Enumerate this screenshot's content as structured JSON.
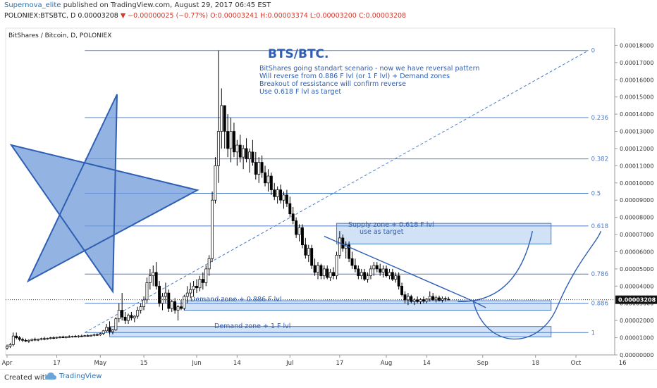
{
  "header": {
    "author": "Supernova_elite",
    "published": "published on TradingView.com, August 29, 2017 06:45 EST",
    "symbol": "POLONIEX:BTSBTC, D",
    "last": "0.00003208",
    "change": "▼ −0.00000025 (−0.77%)",
    "ohlc": "O:0.00003241 H:0.00003374 L:0.00003200 C:0.00003208"
  },
  "footer": {
    "created_with": "Created with",
    "brand": "TradingView"
  },
  "colors": {
    "candle_up": "#ffffff",
    "candle_down": "#000000",
    "fib_line": "#4a7cc9",
    "zone_fill": "#c9dcf4",
    "annotation": "#2e5fb3",
    "star_fill": "#6f9bd9"
  },
  "chart_data": {
    "type": "candlestick",
    "symbol_label": "BitShares / Bitcoin, D, POLONIEX",
    "ylim": [
      0,
      0.00019
    ],
    "y_ticks": [
      "0.00000000",
      "0.00001000",
      "0.00002000",
      "0.00003000",
      "0.00004000",
      "0.00005000",
      "0.00006000",
      "0.00007000",
      "0.00008000",
      "0.00009000",
      "0.00010000",
      "0.00011000",
      "0.00012000",
      "0.00013000",
      "0.00014000",
      "0.00015000",
      "0.00016000",
      "0.00017000",
      "0.00018000"
    ],
    "y_tick_values": [
      0,
      1e-05,
      2e-05,
      3e-05,
      4e-05,
      5e-05,
      6e-05,
      7e-05,
      8e-05,
      9e-05,
      0.0001,
      0.00011,
      0.00012,
      0.00013,
      0.00014,
      0.00015,
      0.00016,
      0.00017,
      0.00018
    ],
    "x_ticks": [
      {
        "label": "Apr",
        "day": 1
      },
      {
        "label": "17",
        "day": 17
      },
      {
        "label": "May",
        "day": 31
      },
      {
        "label": "15",
        "day": 45
      },
      {
        "label": "Jun",
        "day": 62
      },
      {
        "label": "14",
        "day": 75
      },
      {
        "label": "Jul",
        "day": 92
      },
      {
        "label": "17",
        "day": 108
      },
      {
        "label": "Aug",
        "day": 123
      },
      {
        "label": "14",
        "day": 136
      },
      {
        "label": "Sep",
        "day": 154
      },
      {
        "label": "18",
        "day": 171
      },
      {
        "label": "Oct",
        "day": 184
      },
      {
        "label": "16",
        "day": 199
      }
    ],
    "last_price_label": "0.00003208",
    "last_price": 3.208e-05,
    "fib_levels": [
      {
        "label": "0",
        "value": 0.000177
      },
      {
        "label": "0.236",
        "value": 0.000138
      },
      {
        "label": "0.382",
        "value": 0.000114
      },
      {
        "label": "0.5",
        "value": 9.4e-05
      },
      {
        "label": "0.618",
        "value": 7.5e-05
      },
      {
        "label": "0.786",
        "value": 4.7e-05
      },
      {
        "label": "0.886",
        "value": 3e-05
      },
      {
        "label": "1",
        "value": 1.3e-05
      }
    ],
    "candles": [
      {
        "o": 4e-06,
        "h": 6e-06,
        "l": 3e-06,
        "c": 5e-06
      },
      {
        "o": 5e-06,
        "h": 7e-06,
        "l": 4e-06,
        "c": 6e-06
      },
      {
        "o": 6e-06,
        "h": 1.3e-05,
        "l": 5e-06,
        "c": 1.1e-05
      },
      {
        "o": 1.1e-05,
        "h": 1.3e-05,
        "l": 9e-06,
        "c": 1e-05
      },
      {
        "o": 1e-05,
        "h": 1.1e-05,
        "l": 8e-06,
        "c": 9e-06
      },
      {
        "o": 9e-06,
        "h": 1e-05,
        "l": 7.5e-06,
        "c": 8.5e-06
      },
      {
        "o": 8.5e-06,
        "h": 9.5e-06,
        "l": 7.5e-06,
        "c": 8e-06
      },
      {
        "o": 8e-06,
        "h": 9e-06,
        "l": 7e-06,
        "c": 8.5e-06
      },
      {
        "o": 8.5e-06,
        "h": 9.5e-06,
        "l": 7.8e-06,
        "c": 9e-06
      },
      {
        "o": 9e-06,
        "h": 1e-05,
        "l": 8e-06,
        "c": 8.8e-06
      },
      {
        "o": 8.8e-06,
        "h": 9.5e-06,
        "l": 8e-06,
        "c": 9e-06
      },
      {
        "o": 9e-06,
        "h": 1e-05,
        "l": 8.5e-06,
        "c": 9.5e-06
      },
      {
        "o": 9.5e-06,
        "h": 1.05e-05,
        "l": 8.5e-06,
        "c": 9.2e-06
      },
      {
        "o": 9.2e-06,
        "h": 1e-05,
        "l": 8.8e-06,
        "c": 9.6e-06
      },
      {
        "o": 9.6e-06,
        "h": 1.05e-05,
        "l": 9e-06,
        "c": 1e-05
      },
      {
        "o": 1e-05,
        "h": 1.08e-05,
        "l": 9.2e-06,
        "c": 9.8e-06
      },
      {
        "o": 9.8e-06,
        "h": 1.06e-05,
        "l": 9.4e-06,
        "c": 1.02e-05
      },
      {
        "o": 1.02e-05,
        "h": 1.1e-05,
        "l": 9.6e-06,
        "c": 1.05e-05
      },
      {
        "o": 1.05e-05,
        "h": 1.12e-05,
        "l": 9.8e-06,
        "c": 1e-05
      },
      {
        "o": 1e-05,
        "h": 1.1e-05,
        "l": 9.6e-06,
        "c": 1.06e-05
      },
      {
        "o": 1.06e-05,
        "h": 1.14e-05,
        "l": 1e-05,
        "c": 1.04e-05
      },
      {
        "o": 1.04e-05,
        "h": 1.12e-05,
        "l": 1e-05,
        "c": 1.08e-05
      },
      {
        "o": 1.08e-05,
        "h": 1.16e-05,
        "l": 1.02e-05,
        "c": 1.06e-05
      },
      {
        "o": 1.06e-05,
        "h": 1.14e-05,
        "l": 1e-05,
        "c": 1.1e-05
      },
      {
        "o": 1.1e-05,
        "h": 1.18e-05,
        "l": 1.04e-05,
        "c": 1.08e-05
      },
      {
        "o": 1.08e-05,
        "h": 1.16e-05,
        "l": 1.04e-05,
        "c": 1.12e-05
      },
      {
        "o": 1.12e-05,
        "h": 1.2e-05,
        "l": 1.06e-05,
        "c": 1.1e-05
      },
      {
        "o": 1.1e-05,
        "h": 1.18e-05,
        "l": 1.06e-05,
        "c": 1.14e-05
      },
      {
        "o": 1.14e-05,
        "h": 1.24e-05,
        "l": 1.08e-05,
        "c": 1.18e-05
      },
      {
        "o": 1.18e-05,
        "h": 1.26e-05,
        "l": 1.1e-05,
        "c": 1.16e-05
      },
      {
        "o": 1.16e-05,
        "h": 1.3e-05,
        "l": 1.1e-05,
        "c": 1.24e-05
      },
      {
        "o": 1.24e-05,
        "h": 1.45e-05,
        "l": 1.15e-05,
        "c": 1.4e-05
      },
      {
        "o": 1.4e-05,
        "h": 1.8e-05,
        "l": 1.3e-05,
        "c": 1.6e-05
      },
      {
        "o": 1.6e-05,
        "h": 1.95e-05,
        "l": 1.2e-05,
        "c": 1.35e-05
      },
      {
        "o": 1.35e-05,
        "h": 1.5e-05,
        "l": 1.2e-05,
        "c": 1.45e-05
      },
      {
        "o": 1.45e-05,
        "h": 2.2e-05,
        "l": 1.4e-05,
        "c": 2.1e-05
      },
      {
        "o": 2.1e-05,
        "h": 3e-05,
        "l": 1.9e-05,
        "c": 2.6e-05
      },
      {
        "o": 2.6e-05,
        "h": 3.6e-05,
        "l": 2e-05,
        "c": 2.2e-05
      },
      {
        "o": 2.2e-05,
        "h": 2.5e-05,
        "l": 1.8e-05,
        "c": 2e-05
      },
      {
        "o": 2e-05,
        "h": 2.4e-05,
        "l": 1.8e-05,
        "c": 2.3e-05
      },
      {
        "o": 2.3e-05,
        "h": 2.5e-05,
        "l": 2e-05,
        "c": 2.15e-05
      },
      {
        "o": 2.15e-05,
        "h": 2.3e-05,
        "l": 1.9e-05,
        "c": 2.25e-05
      },
      {
        "o": 2.25e-05,
        "h": 2.8e-05,
        "l": 2.1e-05,
        "c": 2.6e-05
      },
      {
        "o": 2.6e-05,
        "h": 3e-05,
        "l": 2.4e-05,
        "c": 2.8e-05
      },
      {
        "o": 2.8e-05,
        "h": 3.4e-05,
        "l": 2.6e-05,
        "c": 3.2e-05
      },
      {
        "o": 3.2e-05,
        "h": 4.5e-05,
        "l": 3e-05,
        "c": 4.2e-05
      },
      {
        "o": 4.2e-05,
        "h": 5e-05,
        "l": 3.8e-05,
        "c": 4.6e-05
      },
      {
        "o": 4.6e-05,
        "h": 5.2e-05,
        "l": 4e-05,
        "c": 4.8e-05
      },
      {
        "o": 4.8e-05,
        "h": 5.4e-05,
        "l": 3.8e-05,
        "c": 4e-05
      },
      {
        "o": 4e-05,
        "h": 4.3e-05,
        "l": 2.8e-05,
        "c": 3e-05
      },
      {
        "o": 3e-05,
        "h": 3.6e-05,
        "l": 2.6e-05,
        "c": 3.4e-05
      },
      {
        "o": 3.4e-05,
        "h": 4.2e-05,
        "l": 3e-05,
        "c": 3.6e-05
      },
      {
        "o": 3.6e-05,
        "h": 3.8e-05,
        "l": 2.5e-05,
        "c": 2.7e-05
      },
      {
        "o": 2.7e-05,
        "h": 3.2e-05,
        "l": 2.5e-05,
        "c": 3.1e-05
      },
      {
        "o": 3.1e-05,
        "h": 3.3e-05,
        "l": 2.4e-05,
        "c": 2.6e-05
      },
      {
        "o": 2.6e-05,
        "h": 2.9e-05,
        "l": 2e-05,
        "c": 2.8e-05
      },
      {
        "o": 2.8e-05,
        "h": 3.2e-05,
        "l": 2.6e-05,
        "c": 2.7e-05
      },
      {
        "o": 2.7e-05,
        "h": 3.5e-05,
        "l": 2.6e-05,
        "c": 3.4e-05
      },
      {
        "o": 3.4e-05,
        "h": 4e-05,
        "l": 3e-05,
        "c": 3.6e-05
      },
      {
        "o": 3.6e-05,
        "h": 4.2e-05,
        "l": 3.3e-05,
        "c": 3.8e-05
      },
      {
        "o": 3.8e-05,
        "h": 4.3e-05,
        "l": 3.4e-05,
        "c": 4e-05
      },
      {
        "o": 4e-05,
        "h": 4.4e-05,
        "l": 3.6e-05,
        "c": 3.9e-05
      },
      {
        "o": 3.9e-05,
        "h": 4.6e-05,
        "l": 3.7e-05,
        "c": 4.4e-05
      },
      {
        "o": 4.4e-05,
        "h": 4.8e-05,
        "l": 3.8e-05,
        "c": 4.2e-05
      },
      {
        "o": 4.2e-05,
        "h": 5.2e-05,
        "l": 4e-05,
        "c": 5e-05
      },
      {
        "o": 5e-05,
        "h": 5.8e-05,
        "l": 4.6e-05,
        "c": 5.6e-05
      },
      {
        "o": 5.6e-05,
        "h": 9.5e-05,
        "l": 5.4e-05,
        "c": 9e-05
      },
      {
        "o": 9e-05,
        "h": 0.000115,
        "l": 8.8e-05,
        "c": 0.00011
      },
      {
        "o": 0.00011,
        "h": 0.000177,
        "l": 0.0001,
        "c": 0.00013
      },
      {
        "o": 0.00013,
        "h": 0.000155,
        "l": 0.00012,
        "c": 0.000145
      },
      {
        "o": 0.000145,
        "h": 0.000145,
        "l": 0.00012,
        "c": 0.00013
      },
      {
        "o": 0.00013,
        "h": 0.00014,
        "l": 0.000115,
        "c": 0.00012
      },
      {
        "o": 0.00012,
        "h": 0.000138,
        "l": 0.000112,
        "c": 0.00013
      },
      {
        "o": 0.00013,
        "h": 0.000135,
        "l": 0.000115,
        "c": 0.000118
      },
      {
        "o": 0.000118,
        "h": 0.000125,
        "l": 0.00011,
        "c": 0.000122
      },
      {
        "o": 0.000122,
        "h": 0.000128,
        "l": 0.000112,
        "c": 0.000115
      },
      {
        "o": 0.000115,
        "h": 0.000122,
        "l": 0.000108,
        "c": 0.00012
      },
      {
        "o": 0.00012,
        "h": 0.000126,
        "l": 0.000112,
        "c": 0.000114
      },
      {
        "o": 0.000114,
        "h": 0.00012,
        "l": 0.000106,
        "c": 0.000118
      },
      {
        "o": 0.000118,
        "h": 0.000125,
        "l": 0.00011,
        "c": 0.000112
      },
      {
        "o": 0.000112,
        "h": 0.000118,
        "l": 0.000102,
        "c": 0.000105
      },
      {
        "o": 0.000105,
        "h": 0.000115,
        "l": 0.0001,
        "c": 0.000112
      },
      {
        "o": 0.000112,
        "h": 0.000116,
        "l": 0.000103,
        "c": 0.000106
      },
      {
        "o": 0.000106,
        "h": 0.00011,
        "l": 9.8e-05,
        "c": 0.0001
      },
      {
        "o": 0.0001,
        "h": 0.000108,
        "l": 9.5e-05,
        "c": 0.000104
      },
      {
        "o": 0.000104,
        "h": 0.000106,
        "l": 9.3e-05,
        "c": 9.6e-05
      },
      {
        "o": 9.6e-05,
        "h": 0.0001,
        "l": 9e-05,
        "c": 9.2e-05
      },
      {
        "o": 9.2e-05,
        "h": 9.8e-05,
        "l": 8.8e-05,
        "c": 9.6e-05
      },
      {
        "o": 9.6e-05,
        "h": 9.9e-05,
        "l": 8.8e-05,
        "c": 9e-05
      },
      {
        "o": 9e-05,
        "h": 9.5e-05,
        "l": 8.5e-05,
        "c": 9.3e-05
      },
      {
        "o": 9.3e-05,
        "h": 9.6e-05,
        "l": 8.6e-05,
        "c": 8.8e-05
      },
      {
        "o": 8.8e-05,
        "h": 9.2e-05,
        "l": 8e-05,
        "c": 8.2e-05
      },
      {
        "o": 8.2e-05,
        "h": 8.6e-05,
        "l": 7.6e-05,
        "c": 7.8e-05
      },
      {
        "o": 7.8e-05,
        "h": 8e-05,
        "l": 6.8e-05,
        "c": 7e-05
      },
      {
        "o": 7e-05,
        "h": 7.6e-05,
        "l": 6.6e-05,
        "c": 7.4e-05
      },
      {
        "o": 7.4e-05,
        "h": 7.6e-05,
        "l": 6.2e-05,
        "c": 6.4e-05
      },
      {
        "o": 6.4e-05,
        "h": 6.8e-05,
        "l": 5.6e-05,
        "c": 5.8e-05
      },
      {
        "o": 5.8e-05,
        "h": 6.4e-05,
        "l": 5.4e-05,
        "c": 6.2e-05
      },
      {
        "o": 6.2e-05,
        "h": 6.4e-05,
        "l": 5e-05,
        "c": 5.2e-05
      },
      {
        "o": 5.2e-05,
        "h": 5.6e-05,
        "l": 4.6e-05,
        "c": 4.8e-05
      },
      {
        "o": 4.8e-05,
        "h": 5.4e-05,
        "l": 4.4e-05,
        "c": 5.2e-05
      },
      {
        "o": 5.2e-05,
        "h": 5.3e-05,
        "l": 4.4e-05,
        "c": 4.6e-05
      },
      {
        "o": 4.6e-05,
        "h": 5.2e-05,
        "l": 4.4e-05,
        "c": 5e-05
      },
      {
        "o": 5e-05,
        "h": 5.2e-05,
        "l": 4.4e-05,
        "c": 4.5e-05
      },
      {
        "o": 4.5e-05,
        "h": 5e-05,
        "l": 4.3e-05,
        "c": 4.8e-05
      },
      {
        "o": 4.8e-05,
        "h": 5.1e-05,
        "l": 4.4e-05,
        "c": 4.6e-05
      },
      {
        "o": 4.6e-05,
        "h": 6e-05,
        "l": 4.4e-05,
        "c": 5.8e-05
      },
      {
        "o": 5.8e-05,
        "h": 7.2e-05,
        "l": 5.6e-05,
        "c": 6.8e-05
      },
      {
        "o": 6.8e-05,
        "h": 7e-05,
        "l": 6e-05,
        "c": 6.2e-05
      },
      {
        "o": 6.2e-05,
        "h": 6.6e-05,
        "l": 5.6e-05,
        "c": 6.4e-05
      },
      {
        "o": 6.4e-05,
        "h": 6.6e-05,
        "l": 5.4e-05,
        "c": 5.6e-05
      },
      {
        "o": 5.6e-05,
        "h": 6e-05,
        "l": 5e-05,
        "c": 5.2e-05
      },
      {
        "o": 5.2e-05,
        "h": 5.6e-05,
        "l": 4.8e-05,
        "c": 5e-05
      },
      {
        "o": 5e-05,
        "h": 5.2e-05,
        "l": 4.4e-05,
        "c": 4.6e-05
      },
      {
        "o": 4.6e-05,
        "h": 5e-05,
        "l": 4.4e-05,
        "c": 4.8e-05
      },
      {
        "o": 4.8e-05,
        "h": 5e-05,
        "l": 4.3e-05,
        "c": 4.4e-05
      },
      {
        "o": 4.4e-05,
        "h": 4.8e-05,
        "l": 4.2e-05,
        "c": 4.6e-05
      },
      {
        "o": 4.6e-05,
        "h": 5.2e-05,
        "l": 4.4e-05,
        "c": 5e-05
      },
      {
        "o": 5e-05,
        "h": 5.4e-05,
        "l": 4.6e-05,
        "c": 5.2e-05
      },
      {
        "o": 5.2e-05,
        "h": 5.4e-05,
        "l": 4.8e-05,
        "c": 5e-05
      },
      {
        "o": 5e-05,
        "h": 5.3e-05,
        "l": 4.6e-05,
        "c": 4.8e-05
      },
      {
        "o": 4.8e-05,
        "h": 5.2e-05,
        "l": 4.5e-05,
        "c": 5e-05
      },
      {
        "o": 5e-05,
        "h": 5.2e-05,
        "l": 4.5e-05,
        "c": 4.6e-05
      },
      {
        "o": 4.6e-05,
        "h": 5e-05,
        "l": 4.4e-05,
        "c": 4.8e-05
      },
      {
        "o": 4.8e-05,
        "h": 5e-05,
        "l": 4.3e-05,
        "c": 4.4e-05
      },
      {
        "o": 4.4e-05,
        "h": 4.8e-05,
        "l": 4.2e-05,
        "c": 4.6e-05
      },
      {
        "o": 4.6e-05,
        "h": 4.8e-05,
        "l": 3.8e-05,
        "c": 4e-05
      },
      {
        "o": 4e-05,
        "h": 4.2e-05,
        "l": 3.4e-05,
        "c": 3.5e-05
      },
      {
        "o": 3.5e-05,
        "h": 3.7e-05,
        "l": 3e-05,
        "c": 3.2e-05
      },
      {
        "o": 3.2e-05,
        "h": 3.6e-05,
        "l": 2.9e-05,
        "c": 3.4e-05
      },
      {
        "o": 3.4e-05,
        "h": 3.5e-05,
        "l": 3e-05,
        "c": 3.1e-05
      },
      {
        "o": 3.1e-05,
        "h": 3.3e-05,
        "l": 2.9e-05,
        "c": 3.2e-05
      },
      {
        "o": 3.2e-05,
        "h": 3.4e-05,
        "l": 3e-05,
        "c": 3.1e-05
      },
      {
        "o": 3.1e-05,
        "h": 3.3e-05,
        "l": 2.95e-05,
        "c": 3.22e-05
      },
      {
        "o": 3.22e-05,
        "h": 3.4e-05,
        "l": 3e-05,
        "c": 3.12e-05
      },
      {
        "o": 3.12e-05,
        "h": 3.3e-05,
        "l": 3e-05,
        "c": 3.25e-05
      },
      {
        "o": 3.25e-05,
        "h": 3.7e-05,
        "l": 3.1e-05,
        "c": 3.4e-05
      },
      {
        "o": 3.4e-05,
        "h": 3.6e-05,
        "l": 3.15e-05,
        "c": 3.2e-05
      },
      {
        "o": 3.2e-05,
        "h": 3.45e-05,
        "l": 3.05e-05,
        "c": 3.32e-05
      },
      {
        "o": 3.32e-05,
        "h": 3.45e-05,
        "l": 3.1e-05,
        "c": 3.18e-05
      },
      {
        "o": 3.18e-05,
        "h": 3.4e-05,
        "l": 3.05e-05,
        "c": 3.28e-05
      },
      {
        "o": 3.28e-05,
        "h": 3.4e-05,
        "l": 3.1e-05,
        "c": 3.24e-05
      },
      {
        "o": 3.24e-05,
        "h": 3.37e-05,
        "l": 3.2e-05,
        "c": 3.21e-05
      }
    ],
    "annotations": {
      "title": "BTS/BTC.",
      "note_lines": [
        "BitShares going standart scenario - now we have reversal pattern",
        "Will reverse from 0.886 F lvl (or 1 F lvl) + Demand zones",
        "Breakout of ressistance will confirm reverse",
        "Use 0.618 F lvl as target"
      ],
      "supply_zone": [
        "Supply zone + 0.618 F lvl",
        "use as target"
      ],
      "demand_zone_886": "Demand zone + 0.886 F lvl",
      "demand_zone_1": "Demand zone + 1 F lvl"
    }
  }
}
